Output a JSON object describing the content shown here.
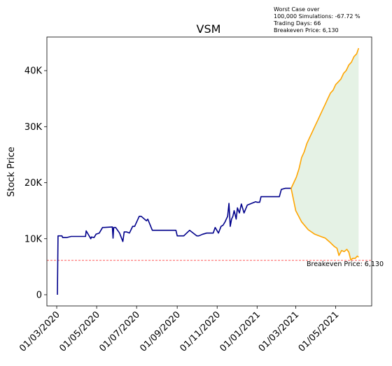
{
  "chart_data": {
    "type": "line",
    "title": "VSM",
    "xlabel": "",
    "ylabel": "Stock Price",
    "grid": false,
    "x_ticks": [
      "01/03/2020",
      "01/05/2020",
      "01/07/2020",
      "01/09/2020",
      "01/11/2020",
      "01/01/2021",
      "01/03/2021",
      "01/05/2021"
    ],
    "y_ticks": [
      "0",
      "10K",
      "20K",
      "30K",
      "40K"
    ],
    "y_tick_values": [
      0,
      10000,
      20000,
      30000,
      40000
    ],
    "xlim": [
      "2020-02-15",
      "2021-06-25"
    ],
    "ylim": [
      -2000,
      46000
    ],
    "info_lines": [
      "Worst Case over",
      "100,000 Simulations: -67.72 %",
      "Trading Days: 66",
      "Breakeven Price: 6,130"
    ],
    "breakeven": {
      "value": 6130,
      "label": "Breakeven Price: 6,130",
      "color": "#ff0000"
    },
    "colors": {
      "history": "#00008b",
      "upper": "#ffa500",
      "lower": "#ffa500",
      "fill": "#e5f2e5"
    },
    "series": [
      {
        "role": "history",
        "x": [
          "2020-03-02",
          "2020-03-03",
          "2020-03-09",
          "2020-03-10",
          "2020-03-16",
          "2020-03-23",
          "2020-04-14",
          "2020-04-15",
          "2020-04-20",
          "2020-04-22",
          "2020-04-23",
          "2020-04-27",
          "2020-04-30",
          "2020-05-05",
          "2020-05-10",
          "2020-05-12",
          "2020-05-25",
          "2020-05-26",
          "2020-05-27",
          "2020-05-30",
          "2020-06-05",
          "2020-06-10",
          "2020-06-12",
          "2020-06-14",
          "2020-06-16",
          "2020-06-20",
          "2020-06-25",
          "2020-06-28",
          "2020-07-05",
          "2020-07-08",
          "2020-07-16",
          "2020-07-18",
          "2020-07-25",
          "2020-08-12",
          "2020-08-14",
          "2020-08-30",
          "2020-09-01",
          "2020-09-04",
          "2020-09-06",
          "2020-09-11",
          "2020-09-20",
          "2020-10-01",
          "2020-10-04",
          "2020-10-10",
          "2020-10-16",
          "2020-10-20",
          "2020-10-26",
          "2020-10-29",
          "2020-11-03",
          "2020-11-07",
          "2020-11-10",
          "2020-11-13",
          "2020-11-15",
          "2020-11-17",
          "2020-11-19",
          "2020-11-21",
          "2020-11-23",
          "2020-11-25",
          "2020-11-27",
          "2020-11-28",
          "2020-11-30",
          "2020-12-02",
          "2020-12-05",
          "2020-12-08",
          "2020-12-12",
          "2020-12-17",
          "2020-12-30",
          "2021-01-01",
          "2021-01-05",
          "2021-01-07",
          "2021-01-10",
          "2021-01-26",
          "2021-01-27",
          "2021-02-04",
          "2021-02-07",
          "2021-02-13",
          "2021-02-18",
          "2021-02-22"
        ],
        "y": [
          0,
          10500,
          10500,
          10200,
          10200,
          10400,
          10400,
          11400,
          10400,
          10000,
          10300,
          10200,
          10800,
          11000,
          12000,
          12000,
          12100,
          10100,
          12000,
          12000,
          11000,
          9500,
          11200,
          11200,
          11200,
          11000,
          12200,
          12200,
          14000,
          14000,
          13200,
          13500,
          11500,
          11500,
          11500,
          11500,
          10500,
          10500,
          10500,
          10500,
          11500,
          10500,
          10500,
          10800,
          11000,
          11000,
          11000,
          12000,
          11000,
          12200,
          12400,
          13000,
          13500,
          14000,
          16300,
          12200,
          13500,
          14000,
          15000,
          14500,
          13500,
          15500,
          14600,
          16200,
          14600,
          16000,
          16600,
          16500,
          16500,
          17500,
          17500,
          17500,
          17500,
          17500,
          18800,
          19000,
          19000,
          19000
        ]
      },
      {
        "role": "upper",
        "x": [
          "2021-02-22",
          "2021-02-26",
          "2021-03-02",
          "2021-03-06",
          "2021-03-10",
          "2021-03-14",
          "2021-03-18",
          "2021-03-22",
          "2021-03-26",
          "2021-03-30",
          "2021-04-03",
          "2021-04-07",
          "2021-04-11",
          "2021-04-15",
          "2021-04-19",
          "2021-04-23",
          "2021-04-27",
          "2021-05-01",
          "2021-05-05",
          "2021-05-09",
          "2021-05-13",
          "2021-05-17",
          "2021-05-21",
          "2021-05-25",
          "2021-05-29",
          "2021-06-02",
          "2021-06-05"
        ],
        "y": [
          19000,
          20000,
          21000,
          22500,
          24500,
          25500,
          27000,
          28000,
          29000,
          30000,
          31000,
          32000,
          33000,
          34000,
          35000,
          36000,
          36500,
          37500,
          38000,
          38500,
          39500,
          40000,
          41000,
          41500,
          42500,
          43000,
          44000
        ]
      },
      {
        "role": "lower",
        "x": [
          "2021-02-22",
          "2021-03-01",
          "2021-03-10",
          "2021-03-20",
          "2021-03-30",
          "2021-04-08",
          "2021-04-15",
          "2021-04-22",
          "2021-04-29",
          "2021-05-03",
          "2021-05-06",
          "2021-05-10",
          "2021-05-14",
          "2021-05-18",
          "2021-05-21",
          "2021-05-24",
          "2021-05-27",
          "2021-05-31",
          "2021-06-03",
          "2021-06-05"
        ],
        "y": [
          19000,
          15000,
          13000,
          11600,
          10800,
          10400,
          10100,
          9400,
          8600,
          8300,
          7000,
          7900,
          7700,
          8100,
          7600,
          6200,
          6500,
          6500,
          6900,
          6700
        ]
      }
    ]
  }
}
